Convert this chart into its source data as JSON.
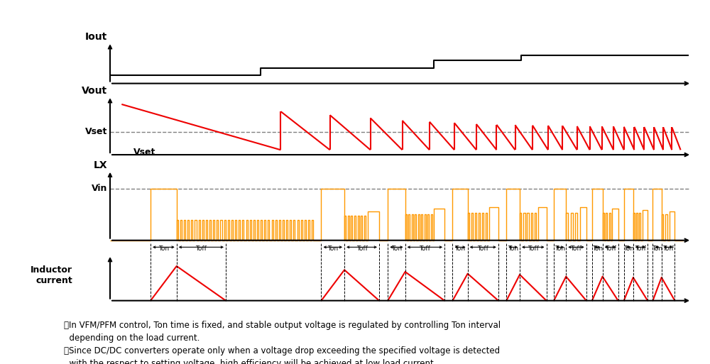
{
  "bg_color": "#ffffff",
  "red_color": "#ee0000",
  "orange_color": "#ff9900",
  "iout_label": "Iout",
  "vout_label": "Vout",
  "lx_label": "LX",
  "vin_label": "Vin",
  "vset_label_axis": "Vset",
  "vset_label_xaxis": "Vset",
  "inductor_label": "Inductor\ncurrent",
  "note1": "・In VFM/PFM control, Ton time is fixed, and stable output voltage is regulated by controlling Ton interval\n  depending on the load current.",
  "note2": "・Since DC/DC converters operate only when a voltage drop exceeding the specified voltage is detected\n  with the respect to setting voltage, high efficiency will be achieved at low load current."
}
